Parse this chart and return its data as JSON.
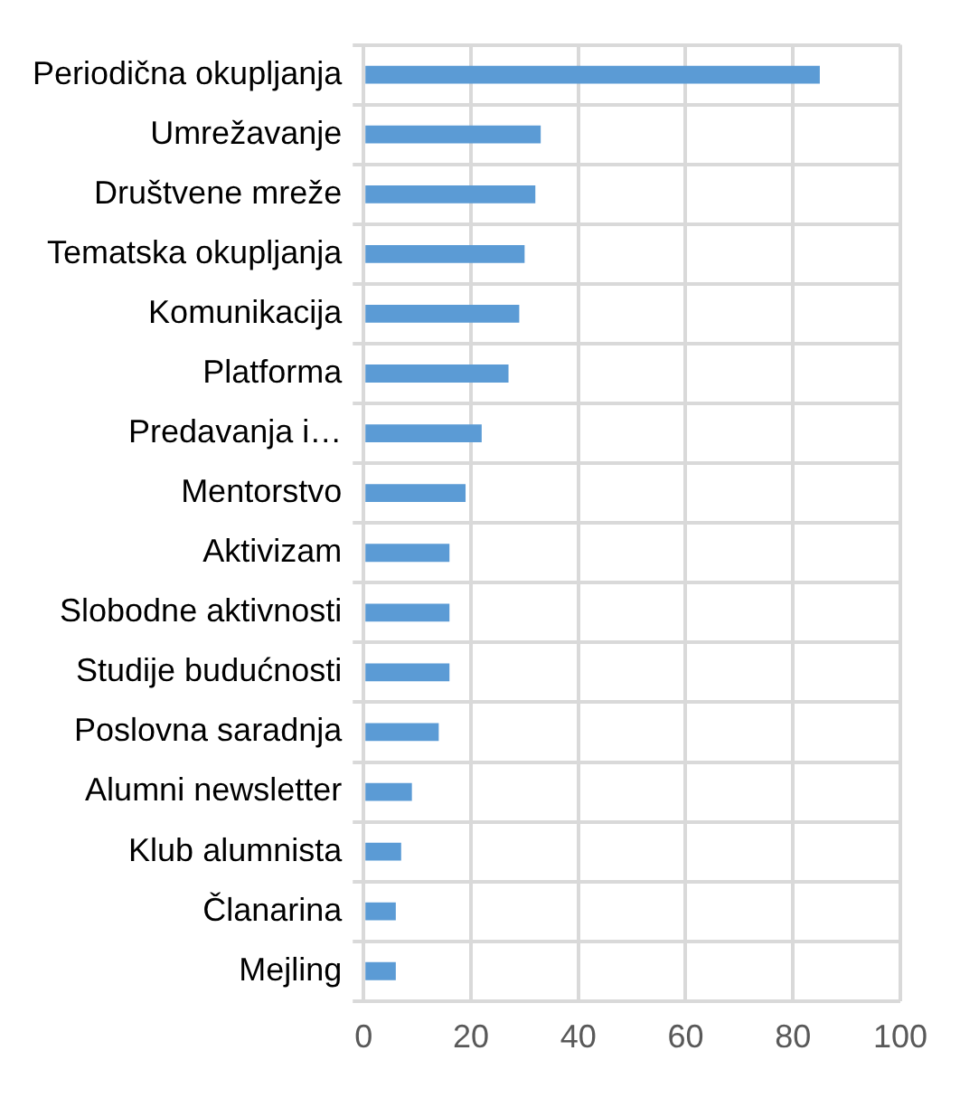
{
  "chart_data": {
    "type": "bar",
    "orientation": "horizontal",
    "categories": [
      "Periodična okupljanja",
      "Umrežavanje",
      "Društvene mreže",
      "Tematska okupljanja",
      "Komunikacija",
      "Platforma",
      "Predavanja i…",
      "Mentorstvo",
      "Aktivizam",
      "Slobodne aktivnosti",
      "Studije budućnosti",
      "Poslovna saradnja",
      "Alumni newsletter",
      "Klub alumnista",
      "Članarina",
      "Mejling"
    ],
    "values": [
      85,
      33,
      32,
      30,
      29,
      27,
      22,
      19,
      16,
      16,
      16,
      14,
      9,
      7,
      6,
      6
    ],
    "color": "#5b9bd5",
    "xlim": [
      0,
      100
    ],
    "xticks": [
      0,
      20,
      40,
      60,
      80,
      100
    ],
    "grid": true,
    "legend": false
  }
}
